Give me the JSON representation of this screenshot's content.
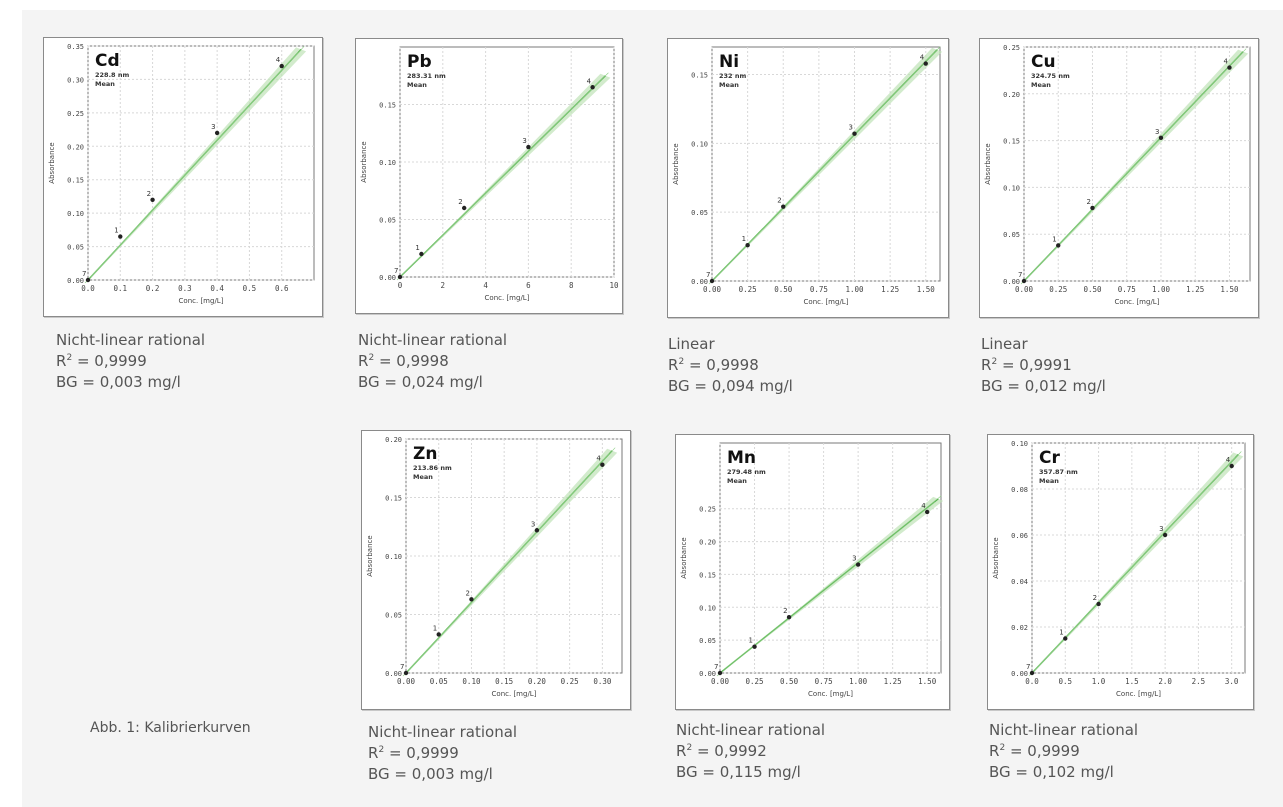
{
  "figure_caption": "Abb. 1: Kalibrierkurven",
  "chart_data": [
    {
      "type": "scatter",
      "element": "Cd",
      "wavelength": "228.8 nm",
      "mode": "Mean",
      "xlabel": "Conc. [mg/L]",
      "ylabel": "Absorbance",
      "xlim": [
        0,
        0.7
      ],
      "ylim": [
        0,
        0.35
      ],
      "xticks": [
        "0.0",
        "0.1",
        "0.2",
        "0.3",
        "0.4",
        "0.5",
        "0.6"
      ],
      "yticks": [
        "0.00",
        "0.05",
        "0.10",
        "0.15",
        "0.20",
        "0.25",
        "0.30",
        "0.35"
      ],
      "x": [
        0,
        0.1,
        0.2,
        0.4,
        0.6
      ],
      "y": [
        0,
        0.065,
        0.12,
        0.22,
        0.32
      ],
      "point_labels": [
        "7",
        "1",
        "2",
        "3",
        "4"
      ],
      "fit": [
        [
          0,
          0
        ],
        [
          0.66,
          0.345
        ]
      ],
      "caption": {
        "model": "Nicht-linear rational",
        "r2_prefix": "R",
        "r2_value": " = 0,9999",
        "bg": "BG = 0,003 mg/l"
      }
    },
    {
      "type": "scatter",
      "element": "Pb",
      "wavelength": "283.31 nm",
      "mode": "Mean",
      "xlabel": "Conc. [mg/L]",
      "ylabel": "Absorbance",
      "xlim": [
        0,
        10
      ],
      "ylim": [
        0,
        0.2
      ],
      "xticks": [
        "0",
        "2",
        "4",
        "6",
        "8",
        "10"
      ],
      "yticks": [
        "0.00",
        "0.05",
        "0.10",
        "0.15"
      ],
      "x": [
        0,
        1,
        3,
        6,
        9
      ],
      "y": [
        0,
        0.02,
        0.06,
        0.113,
        0.165
      ],
      "point_labels": [
        "7",
        "1",
        "2",
        "3",
        "4"
      ],
      "fit": [
        [
          0,
          0
        ],
        [
          9.6,
          0.175
        ]
      ],
      "caption": {
        "model": "Nicht-linear rational",
        "r2_prefix": "R",
        "r2_value": " = 0,9998",
        "bg": "BG = 0,024 mg/l"
      }
    },
    {
      "type": "scatter",
      "element": "Ni",
      "wavelength": "232 nm",
      "mode": "Mean",
      "xlabel": "Conc. [mg/L]",
      "ylabel": "Absorbance",
      "xlim": [
        0,
        1.6
      ],
      "ylim": [
        0,
        0.17
      ],
      "xticks": [
        "0.00",
        "0.25",
        "0.50",
        "0.75",
        "1.00",
        "1.25",
        "1.50"
      ],
      "yticks": [
        "0.00",
        "0.05",
        "0.10",
        "0.15"
      ],
      "x": [
        0,
        0.25,
        0.5,
        1.0,
        1.5
      ],
      "y": [
        0,
        0.026,
        0.054,
        0.107,
        0.158
      ],
      "point_labels": [
        "7",
        "1",
        "2",
        "3",
        "4"
      ],
      "fit": [
        [
          0,
          0
        ],
        [
          1.58,
          0.168
        ]
      ],
      "caption": {
        "model": "Linear",
        "r2_prefix": "R",
        "r2_value": " = 0,9998",
        "bg": "BG = 0,094 mg/l"
      }
    },
    {
      "type": "scatter",
      "element": "Cu",
      "wavelength": "324.75 nm",
      "mode": "Mean",
      "xlabel": "Conc. [mg/L]",
      "ylabel": "Absorbance",
      "xlim": [
        0,
        1.65
      ],
      "ylim": [
        0,
        0.25
      ],
      "xticks": [
        "0.00",
        "0.25",
        "0.50",
        "0.75",
        "1.00",
        "1.25",
        "1.50"
      ],
      "yticks": [
        "0.00",
        "0.05",
        "0.10",
        "0.15",
        "0.20",
        "0.25"
      ],
      "x": [
        0,
        0.25,
        0.5,
        1.0,
        1.5
      ],
      "y": [
        0,
        0.038,
        0.078,
        0.153,
        0.228
      ],
      "point_labels": [
        "7",
        "1",
        "2",
        "3",
        "4"
      ],
      "fit": [
        [
          0,
          0
        ],
        [
          1.6,
          0.245
        ]
      ],
      "caption": {
        "model": "Linear",
        "r2_prefix": "R",
        "r2_value": " = 0,9991",
        "bg": "BG = 0,012 mg/l"
      }
    },
    {
      "type": "scatter",
      "element": "Zn",
      "wavelength": "213.86 nm",
      "mode": "Mean",
      "xlabel": "Conc. [mg/L]",
      "ylabel": "Absorbance",
      "xlim": [
        0,
        0.33
      ],
      "ylim": [
        0,
        0.2
      ],
      "xticks": [
        "0.00",
        "0.05",
        "0.10",
        "0.15",
        "0.20",
        "0.25",
        "0.30"
      ],
      "yticks": [
        "0.00",
        "0.05",
        "0.10",
        "0.15",
        "0.20"
      ],
      "x": [
        0,
        0.05,
        0.1,
        0.2,
        0.3
      ],
      "y": [
        0,
        0.033,
        0.063,
        0.122,
        0.178
      ],
      "point_labels": [
        "7",
        "1",
        "2",
        "3",
        "4"
      ],
      "fit": [
        [
          0,
          0
        ],
        [
          0.315,
          0.19
        ]
      ],
      "caption": {
        "model": "Nicht-linear rational",
        "r2_prefix": "R",
        "r2_value": " = 0,9999",
        "bg": "BG = 0,003 mg/l"
      }
    },
    {
      "type": "scatter",
      "element": "Mn",
      "wavelength": "279.48 nm",
      "mode": "Mean",
      "xlabel": "Conc. [mg/L]",
      "ylabel": "Absorbance",
      "xlim": [
        0,
        1.6
      ],
      "ylim": [
        0,
        0.35
      ],
      "xticks": [
        "0.00",
        "0.25",
        "0.50",
        "0.75",
        "1.00",
        "1.25",
        "1.50"
      ],
      "yticks": [
        "0.00",
        "0.05",
        "0.10",
        "0.15",
        "0.20",
        "0.25"
      ],
      "x": [
        0,
        0.25,
        0.5,
        1.0,
        1.5
      ],
      "y": [
        0,
        0.04,
        0.085,
        0.165,
        0.245
      ],
      "point_labels": [
        "7",
        "1",
        "2",
        "3",
        "4"
      ],
      "fit": [
        [
          0,
          0
        ],
        [
          1.58,
          0.265
        ]
      ],
      "caption": {
        "model": "Nicht-linear rational",
        "r2_prefix": "R",
        "r2_value": " = 0,9992",
        "bg": "BG = 0,115 mg/l"
      }
    },
    {
      "type": "scatter",
      "element": "Cr",
      "wavelength": "357.87 nm",
      "mode": "Mean",
      "xlabel": "Conc. [mg/L]",
      "ylabel": "Absorbance",
      "xlim": [
        0,
        3.2
      ],
      "ylim": [
        0,
        0.1
      ],
      "xticks": [
        "0.0",
        "0.5",
        "1.0",
        "1.5",
        "2.0",
        "2.5",
        "3.0"
      ],
      "yticks": [
        "0.00",
        "0.02",
        "0.04",
        "0.06",
        "0.08",
        "0.10"
      ],
      "x": [
        0,
        0.5,
        1.0,
        2.0,
        3.0
      ],
      "y": [
        0,
        0.015,
        0.03,
        0.06,
        0.09
      ],
      "point_labels": [
        "7",
        "1",
        "2",
        "3",
        "4"
      ],
      "fit": [
        [
          0,
          0
        ],
        [
          3.1,
          0.095
        ]
      ],
      "caption": {
        "model": "Nicht-linear rational",
        "r2_prefix": "R",
        "r2_value": " = 0,9999",
        "bg": "BG = 0,102 mg/l"
      }
    }
  ]
}
